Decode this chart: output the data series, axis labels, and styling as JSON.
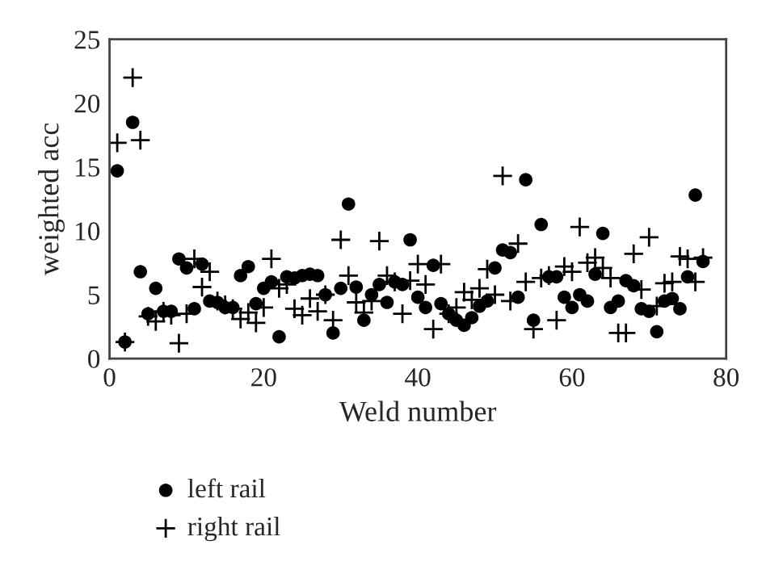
{
  "chart_data": {
    "type": "scatter",
    "xlabel": "Weld number",
    "ylabel": "weighted acc",
    "xlim": [
      0,
      80
    ],
    "ylim": [
      0,
      25
    ],
    "xticks": [
      0,
      20,
      40,
      60,
      80
    ],
    "yticks": [
      0,
      5,
      10,
      15,
      20,
      25
    ],
    "grid": false,
    "legend": "bottom left",
    "series": [
      {
        "name": "left rail",
        "color": "#000000",
        "marker": "circle",
        "x": [
          1,
          2,
          3,
          4,
          5,
          6,
          7,
          8,
          9,
          10,
          11,
          12,
          13,
          14,
          15,
          16,
          17,
          18,
          19,
          20,
          21,
          22,
          23,
          24,
          25,
          26,
          27,
          28,
          29,
          30,
          31,
          32,
          33,
          34,
          35,
          36,
          37,
          38,
          39,
          40,
          41,
          42,
          43,
          44,
          45,
          46,
          47,
          48,
          49,
          50,
          51,
          52,
          53,
          54,
          55,
          56,
          57,
          58,
          59,
          60,
          61,
          62,
          63,
          64,
          65,
          66,
          67,
          68,
          69,
          70,
          71,
          72,
          73,
          74,
          75,
          76,
          77
        ],
        "values": [
          14.7,
          1.3,
          18.5,
          6.8,
          3.5,
          5.5,
          3.7,
          3.7,
          7.8,
          7.1,
          3.9,
          7.4,
          4.5,
          4.4,
          4.0,
          4.0,
          6.5,
          7.2,
          4.3,
          5.5,
          6.0,
          1.7,
          6.4,
          6.3,
          6.5,
          6.6,
          6.5,
          5.0,
          2.0,
          5.5,
          12.1,
          5.6,
          3.0,
          5.0,
          5.8,
          4.4,
          6.0,
          5.8,
          9.3,
          4.8,
          4.0,
          7.3,
          4.3,
          3.5,
          3.0,
          2.6,
          3.2,
          4.1,
          4.5,
          7.1,
          8.5,
          8.3,
          4.8,
          14.0,
          3.0,
          10.5,
          6.4,
          6.4,
          4.8,
          4.0,
          5.0,
          4.5,
          6.6,
          9.8,
          4.0,
          4.5,
          6.1,
          5.7,
          3.9,
          3.7,
          2.1,
          4.5,
          4.7,
          3.9,
          6.4,
          12.8,
          7.6
        ]
      },
      {
        "name": "right rail",
        "color": "#000000",
        "marker": "cross",
        "x": [
          1,
          2,
          3,
          4,
          5,
          6,
          7,
          8,
          9,
          10,
          11,
          12,
          13,
          14,
          15,
          16,
          17,
          18,
          19,
          20,
          21,
          22,
          23,
          24,
          25,
          26,
          27,
          28,
          29,
          30,
          31,
          32,
          33,
          34,
          35,
          36,
          37,
          38,
          39,
          40,
          41,
          42,
          43,
          44,
          45,
          46,
          47,
          48,
          49,
          50,
          51,
          52,
          53,
          54,
          55,
          56,
          57,
          58,
          59,
          60,
          61,
          62,
          63,
          64,
          65,
          66,
          67,
          68,
          69,
          70,
          71,
          72,
          73,
          74,
          75,
          76,
          77
        ],
        "values": [
          16.9,
          1.3,
          22.0,
          17.1,
          3.3,
          2.9,
          3.7,
          3.4,
          1.2,
          3.5,
          7.8,
          5.6,
          6.8,
          4.5,
          4.2,
          3.9,
          3.1,
          3.6,
          2.8,
          4.0,
          7.8,
          5.5,
          5.8,
          3.9,
          3.4,
          4.7,
          3.7,
          5.0,
          3.0,
          9.3,
          6.5,
          4.4,
          3.6,
          4.5,
          9.2,
          6.5,
          6.0,
          3.5,
          6.1,
          7.4,
          5.8,
          2.3,
          7.4,
          3.5,
          4.0,
          5.2,
          4.6,
          5.5,
          7.0,
          5.0,
          14.3,
          4.5,
          9.0,
          6.0,
          2.3,
          6.3,
          6.5,
          3.0,
          7.2,
          6.8,
          10.3,
          7.5,
          7.9,
          7.1,
          6.3,
          2.0,
          2.0,
          8.2,
          5.4,
          9.5,
          4.1,
          5.9,
          6.0,
          8.0,
          7.8,
          6.0,
          7.9
        ]
      }
    ]
  }
}
